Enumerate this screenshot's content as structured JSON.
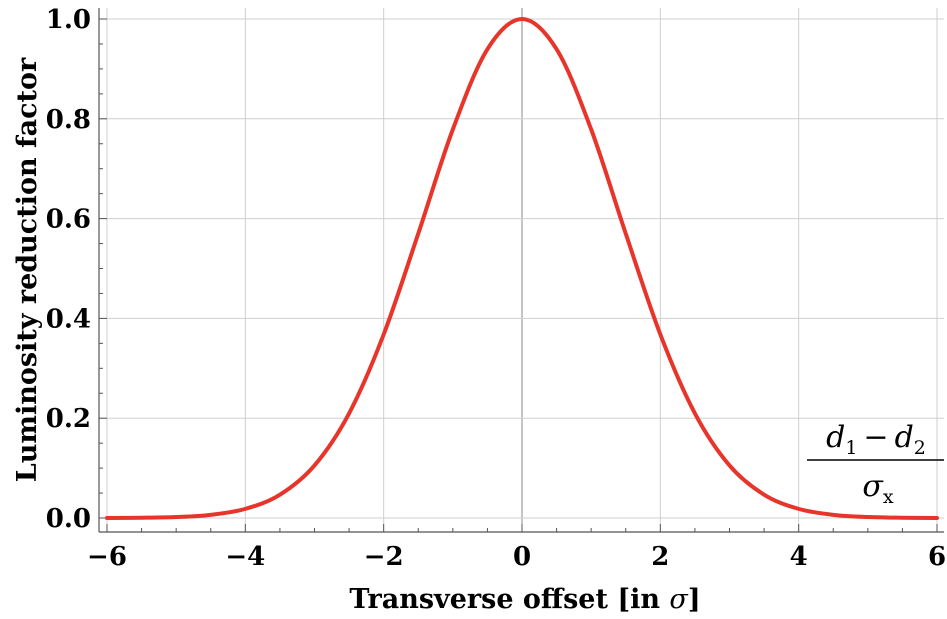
{
  "chart_data": {
    "type": "line",
    "xlabel_prefix": "Transverse offset [in ",
    "xlabel_symbol": "σ",
    "xlabel_suffix": "]",
    "ylabel": "Luminosity reduction factor",
    "xlim": [
      -6,
      6
    ],
    "ylim": [
      0,
      1
    ],
    "x_ticks": [
      -6,
      -4,
      -2,
      0,
      2,
      4,
      6
    ],
    "x_tick_labels": [
      "−6",
      "−4",
      "−2",
      "0",
      "2",
      "4",
      "6"
    ],
    "y_ticks": [
      0,
      0.2,
      0.4,
      0.6,
      0.8,
      1.0
    ],
    "y_tick_labels": [
      "0.0",
      "0.2",
      "0.4",
      "0.6",
      "0.8",
      "1.0"
    ],
    "grid": true,
    "series": [
      {
        "color": "#e8352b",
        "x": [
          -6,
          -5.5,
          -5,
          -4.5,
          -4,
          -3.5,
          -3,
          -2.5,
          -2,
          -1.5,
          -1,
          -0.5,
          0,
          0.5,
          1,
          1.5,
          2,
          2.5,
          3,
          3.5,
          4,
          4.5,
          5,
          5.5,
          6
        ],
        "y": [
          0.0001,
          0.0005,
          0.0019,
          0.0063,
          0.0183,
          0.0468,
          0.1054,
          0.2096,
          0.3679,
          0.5698,
          0.7788,
          0.9394,
          1.0,
          0.9394,
          0.7788,
          0.5698,
          0.3679,
          0.2096,
          0.1054,
          0.0468,
          0.0183,
          0.0063,
          0.0019,
          0.0005,
          0.0001
        ]
      }
    ],
    "annotation": {
      "numerator_a": "d",
      "numerator_a_sub": "1",
      "minus": "−",
      "numerator_b": "d",
      "numerator_b_sub": "2",
      "denominator": "σ",
      "denominator_sub": "x"
    }
  }
}
